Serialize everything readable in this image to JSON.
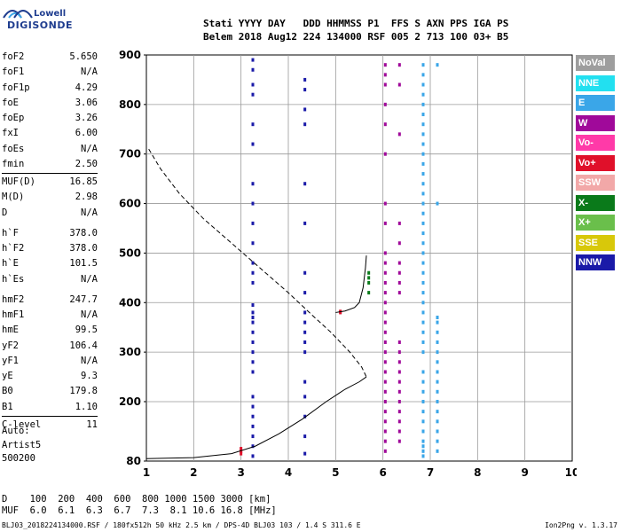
{
  "logo": {
    "line1": "Lowell",
    "line2": "DIGISONDE"
  },
  "header": {
    "row1": "Stati YYYY DAY   DDD HHMMSS P1  FFS S AXN PPS IGA PS",
    "row2": "Belem 2018 Aug12 224 134000 RSF 005 2 713 100 03+ B5"
  },
  "params": [
    {
      "label": "foF2",
      "value": "5.650"
    },
    {
      "label": "foF1",
      "value": "N/A"
    },
    {
      "label": "foF1p",
      "value": "4.29"
    },
    {
      "label": "foE",
      "value": "3.06"
    },
    {
      "label": "foEp",
      "value": "3.26"
    },
    {
      "label": "fxI",
      "value": "6.00"
    },
    {
      "label": "foEs",
      "value": "N/A"
    },
    {
      "label": "fmin",
      "value": "2.50"
    },
    {
      "label": "MUF(D)",
      "value": "16.85"
    },
    {
      "label": "M(D)",
      "value": "2.98"
    },
    {
      "label": "D",
      "value": "N/A"
    },
    {
      "label": "h`F",
      "value": "378.0"
    },
    {
      "label": "h`F2",
      "value": "378.0"
    },
    {
      "label": "h`E",
      "value": "101.5"
    },
    {
      "label": "h`Es",
      "value": "N/A"
    },
    {
      "label": "hmF2",
      "value": "247.7"
    },
    {
      "label": "hmF1",
      "value": "N/A"
    },
    {
      "label": "hmE",
      "value": "99.5"
    },
    {
      "label": "yF2",
      "value": "106.4"
    },
    {
      "label": "yF1",
      "value": "N/A"
    },
    {
      "label": "yE",
      "value": "9.3"
    },
    {
      "label": "B0",
      "value": "179.8"
    },
    {
      "label": "B1",
      "value": "1.10"
    },
    {
      "label": "C-level",
      "value": "11"
    }
  ],
  "auto": {
    "line1": "Auto:",
    "line2": "Artist5",
    "line3": "500200"
  },
  "legend": [
    {
      "label": "NoVal",
      "color": "#9e9e9e"
    },
    {
      "label": "NNE",
      "color": "#22e0f0"
    },
    {
      "label": "E",
      "color": "#3aa6e8"
    },
    {
      "label": "W",
      "color": "#a0099a"
    },
    {
      "label": "Vo-",
      "color": "#ff3aa8"
    },
    {
      "label": "Vo+",
      "color": "#e0102a"
    },
    {
      "label": "SSW",
      "color": "#f2a8a8"
    },
    {
      "label": "X-",
      "color": "#0a7a1a"
    },
    {
      "label": "X+",
      "color": "#6abf4b"
    },
    {
      "label": "SSE",
      "color": "#d8c80a"
    },
    {
      "label": "NNW",
      "color": "#1a1aa8"
    }
  ],
  "dmuf": {
    "d_row": "D    100  200  400  600  800 1000 1500 3000 [km]",
    "muf_row": "MUF  6.0  6.1  6.3  6.7  7.3  8.1 10.6 16.8 [MHz]"
  },
  "footer": "BLJ03_2018224134000.RSF / 180fx512h 50 kHz 2.5 km / DPS-4D BLJ03 103 / 1.4 S 311.6 E",
  "version": "Ion2Png v. 1.3.17",
  "chart_data": {
    "type": "scatter",
    "x_axis": {
      "min": 1,
      "max": 10,
      "ticks": [
        "1",
        "2",
        "3",
        "4",
        "5",
        "6",
        "7",
        "8",
        "9",
        "10"
      ]
    },
    "y_axis": {
      "min": 80,
      "max": 900,
      "ticks": [
        "900",
        "800",
        "700",
        "600",
        "500",
        "400",
        "300",
        "200",
        "80"
      ]
    },
    "grid": true,
    "profile_dashed": [
      [
        1.05,
        710
      ],
      [
        1.3,
        670
      ],
      [
        1.7,
        620
      ],
      [
        2.2,
        570
      ],
      [
        2.8,
        520
      ],
      [
        3.4,
        470
      ],
      [
        4.0,
        420
      ],
      [
        4.5,
        375
      ],
      [
        4.9,
        340
      ],
      [
        5.3,
        300
      ],
      [
        5.55,
        270
      ],
      [
        5.65,
        250
      ]
    ],
    "trace_solid": [
      [
        1.0,
        85
      ],
      [
        2.0,
        87
      ],
      [
        2.8,
        95
      ],
      [
        3.3,
        110
      ],
      [
        3.8,
        135
      ],
      [
        4.3,
        165
      ],
      [
        4.8,
        200
      ],
      [
        5.2,
        225
      ],
      [
        5.5,
        240
      ],
      [
        5.65,
        250
      ]
    ],
    "trace_f2": [
      [
        5.0,
        380
      ],
      [
        5.2,
        383
      ],
      [
        5.4,
        390
      ],
      [
        5.5,
        400
      ],
      [
        5.58,
        430
      ],
      [
        5.63,
        470
      ],
      [
        5.65,
        495
      ]
    ],
    "echo_columns": [
      {
        "x": 3.25,
        "color": "#1a1aa8",
        "y": [
          90,
          110,
          130,
          150,
          170,
          190,
          210,
          260,
          280,
          300,
          320,
          340,
          360,
          370,
          380,
          395,
          440,
          460,
          480,
          520,
          560,
          600,
          640,
          720,
          760,
          820,
          840,
          870,
          890
        ]
      },
      {
        "x": 4.35,
        "color": "#1a1aa8",
        "y": [
          95,
          130,
          170,
          210,
          240,
          300,
          320,
          340,
          360,
          380,
          420,
          460,
          560,
          640,
          760,
          790,
          830,
          850
        ]
      },
      {
        "x": 6.05,
        "color": "#a0099a",
        "y": [
          100,
          120,
          140,
          160,
          180,
          200,
          220,
          240,
          260,
          280,
          300,
          320,
          340,
          360,
          380,
          400,
          420,
          440,
          460,
          480,
          500,
          560,
          600,
          700,
          760,
          800,
          840,
          860,
          880
        ]
      },
      {
        "x": 6.35,
        "color": "#a0099a",
        "y": [
          120,
          140,
          160,
          180,
          200,
          220,
          240,
          260,
          280,
          300,
          320,
          420,
          440,
          460,
          480,
          520,
          560,
          740,
          840,
          880
        ]
      },
      {
        "x": 6.85,
        "color": "#3aa6e8",
        "y": [
          90,
          100,
          110,
          120,
          140,
          160,
          180,
          200,
          220,
          240,
          260,
          300,
          320,
          340,
          360,
          380,
          400,
          420,
          440,
          460,
          480,
          500,
          520,
          540,
          560,
          580,
          600,
          620,
          640,
          660,
          680,
          700,
          720,
          740,
          760,
          780,
          800,
          820,
          840,
          860,
          880
        ]
      },
      {
        "x": 7.15,
        "color": "#3aa6e8",
        "y": [
          100,
          120,
          140,
          160,
          180,
          200,
          220,
          240,
          260,
          280,
          300,
          320,
          340,
          360,
          370,
          600,
          880
        ]
      },
      {
        "x": 3.0,
        "color": "#e0102a",
        "y": [
          95,
          100,
          105
        ]
      },
      {
        "x": 5.1,
        "color": "#e0102a",
        "y": [
          380,
          382
        ]
      },
      {
        "x": 5.7,
        "color": "#0a7a1a",
        "y": [
          420,
          440,
          450,
          460
        ]
      }
    ]
  }
}
